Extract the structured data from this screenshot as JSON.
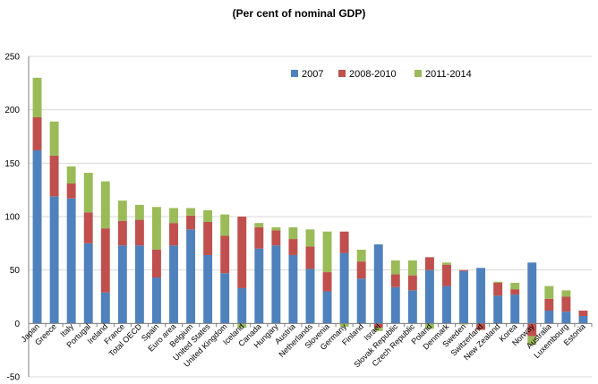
{
  "chart_data": {
    "type": "bar",
    "stacked": true,
    "title": "",
    "subtitle": "(Per cent of nominal GDP)",
    "xlabel": "",
    "ylabel": "",
    "ylim": [
      -50,
      250
    ],
    "yticks": [
      -50,
      0,
      50,
      100,
      150,
      200,
      250
    ],
    "grid": true,
    "legend_position": "top-right",
    "categories": [
      "Japan",
      "Greece",
      "Italy",
      "Portugal",
      "Ireland",
      "France",
      "Total OECD",
      "Spain",
      "Euro area",
      "Belgium",
      "United States",
      "United Kingdom",
      "Iceland",
      "Canada",
      "Hungary",
      "Austria",
      "Netherlands",
      "Slovenia",
      "Germany",
      "Finland",
      "Israel",
      "Slovak Republic",
      "Czech Republic",
      "Poland",
      "Denmark",
      "Sweden",
      "Switzerland",
      "New Zealand",
      "Korea",
      "Norway",
      "Australia",
      "Luxembourg",
      "Estonia"
    ],
    "series": [
      {
        "name": "2007",
        "color": "#4f81bd",
        "values": [
          162,
          119,
          117,
          75,
          29,
          73,
          73,
          43,
          73,
          88,
          64,
          47,
          33,
          70,
          73,
          64,
          51,
          30,
          66,
          42,
          74,
          34,
          31,
          50,
          35,
          49,
          52,
          26,
          27,
          57,
          12,
          11,
          7
        ]
      },
      {
        "name": "2008-2010",
        "color": "#c0504d",
        "values": [
          31,
          38,
          14,
          29,
          60,
          23,
          24,
          26,
          21,
          13,
          31,
          35,
          67,
          20,
          14,
          15,
          21,
          18,
          20,
          16,
          -4,
          12,
          14,
          12,
          20,
          1,
          -6,
          12,
          5,
          -12,
          11,
          14,
          5
        ]
      },
      {
        "name": "2011-2014",
        "color": "#9bbb59",
        "values": [
          37,
          32,
          16,
          37,
          44,
          19,
          14,
          40,
          14,
          7,
          11,
          20,
          -4,
          4,
          3,
          11,
          16,
          38,
          -3,
          11,
          -3,
          13,
          14,
          -5,
          2,
          -1,
          0,
          1,
          6,
          -8,
          12,
          6,
          0
        ]
      }
    ]
  }
}
